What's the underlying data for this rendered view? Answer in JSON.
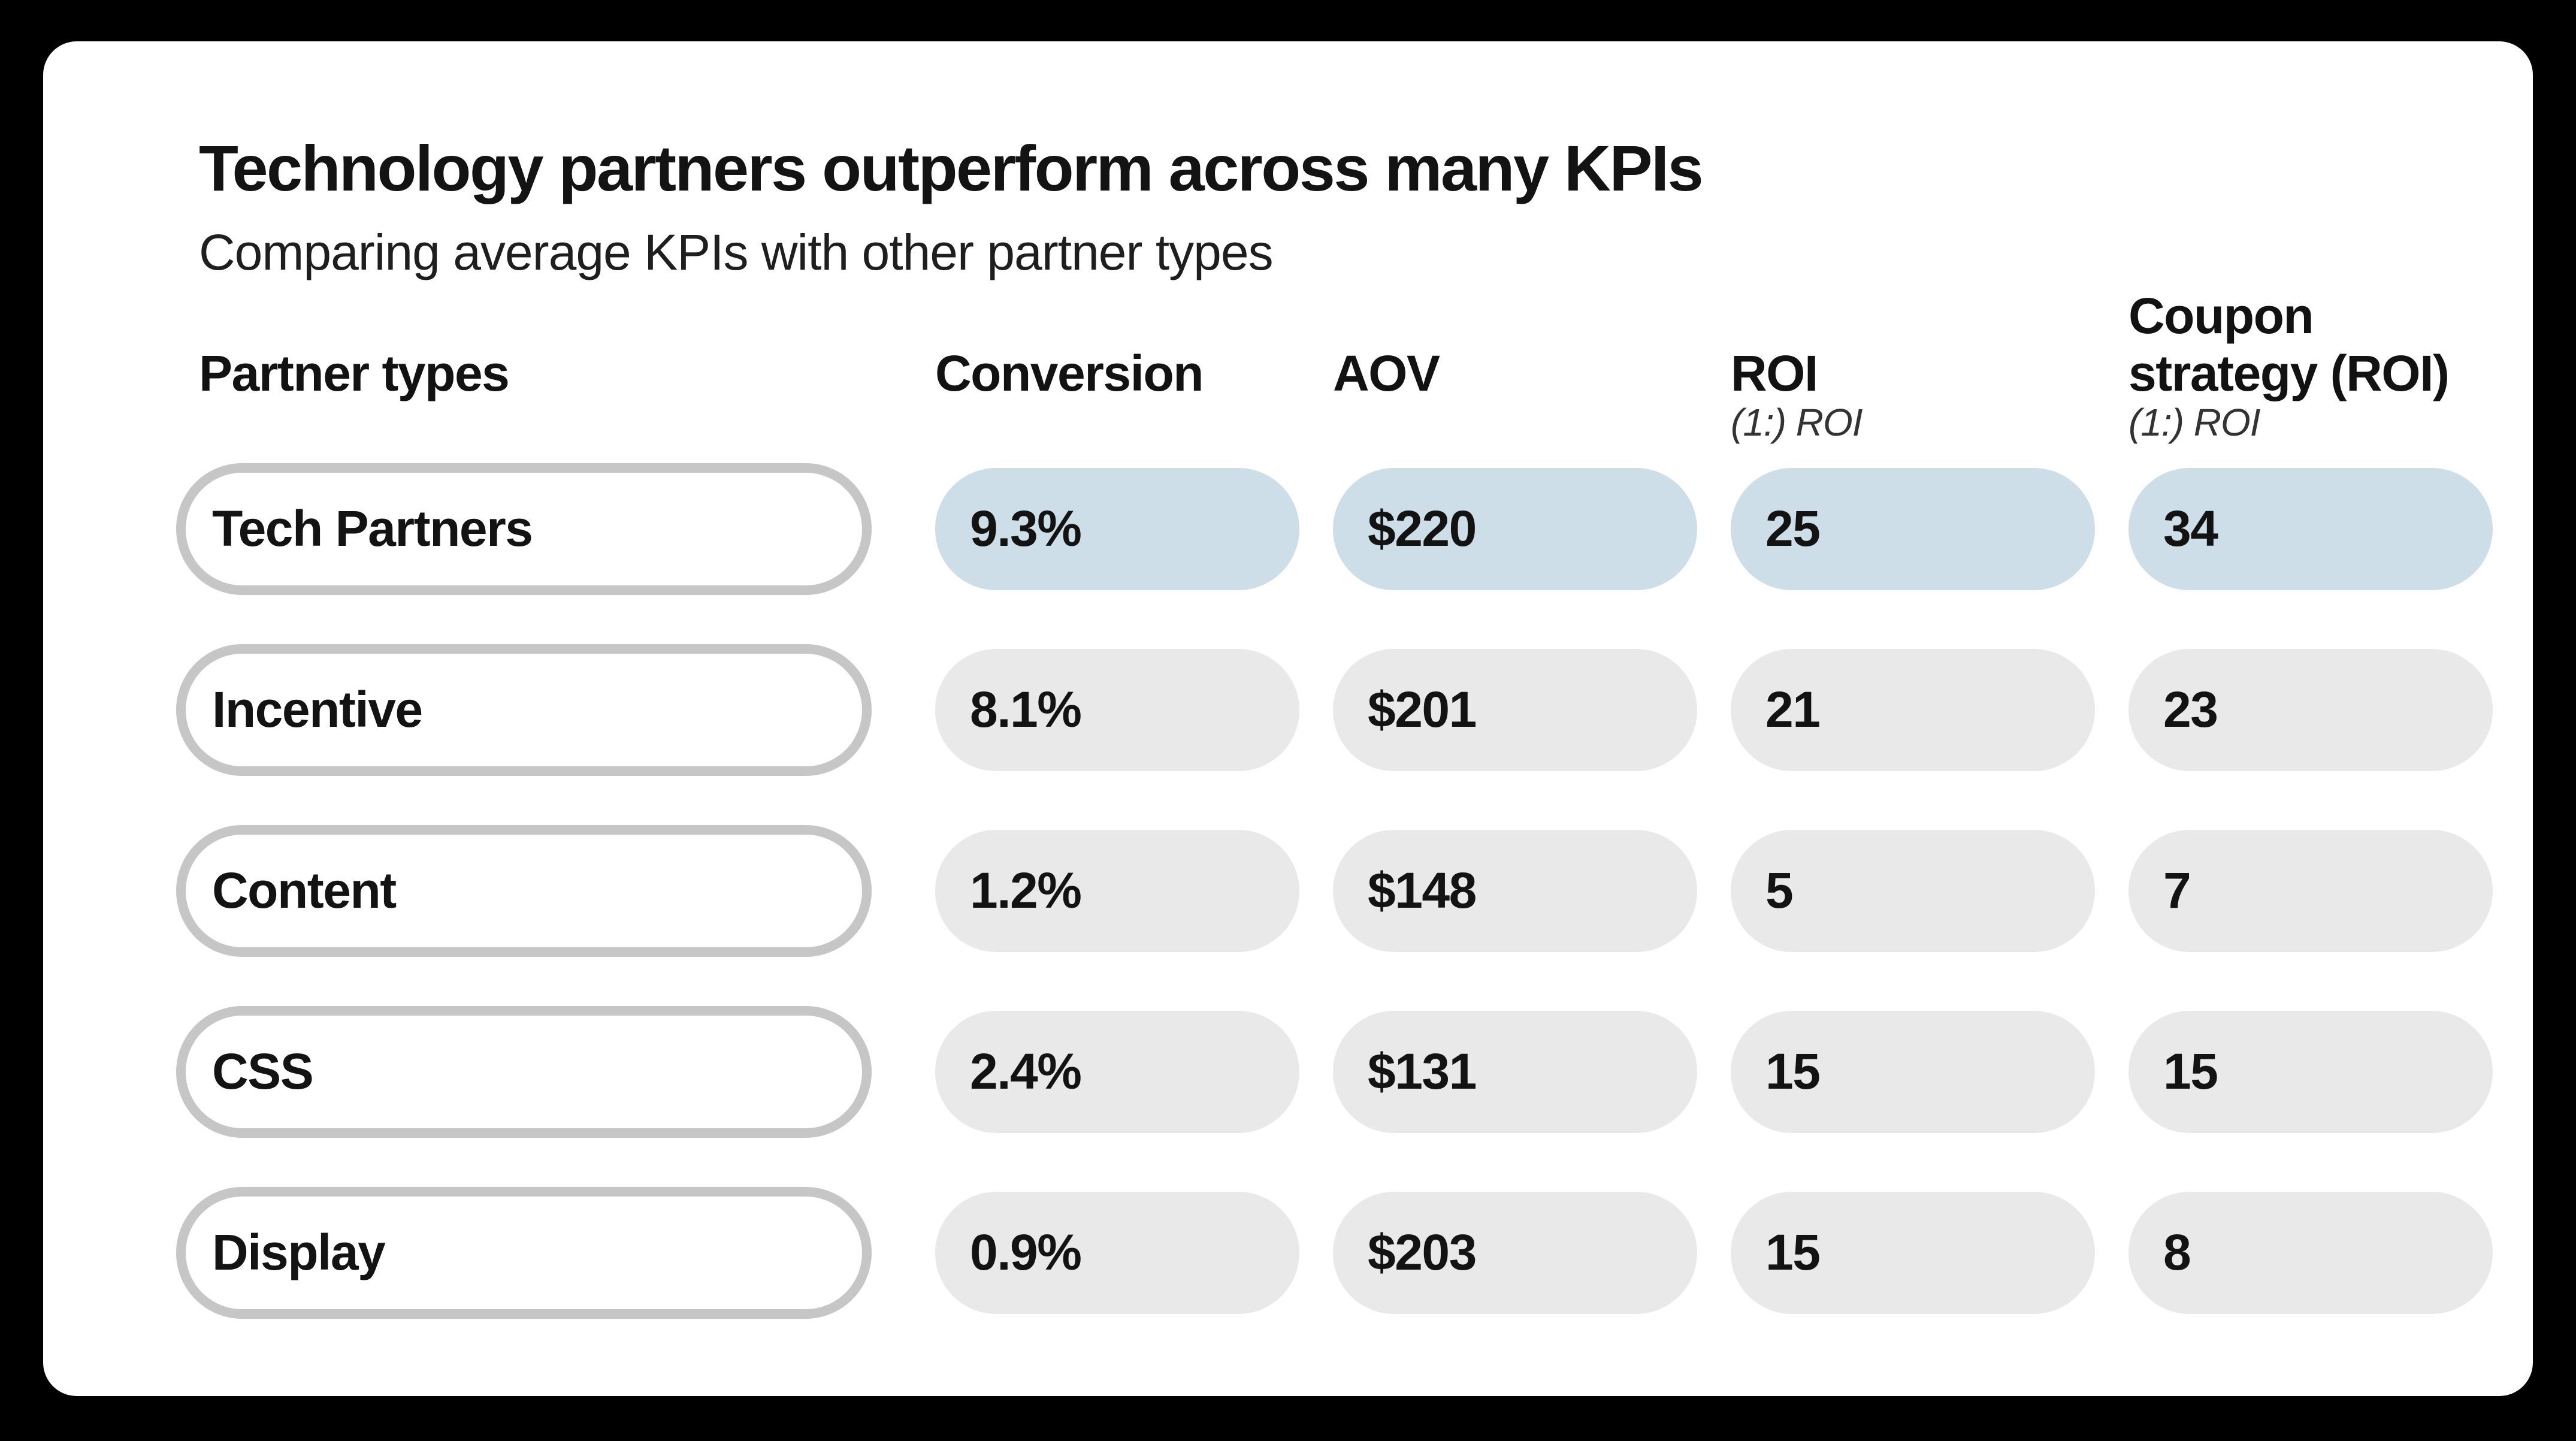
{
  "chart_data": {
    "type": "table",
    "title": "Technology partners outperform across many KPIs",
    "subtitle": "Comparing average KPIs with other partner types",
    "row_header": "Partner types",
    "categories": [
      "Tech Partners",
      "Incentive",
      "Content",
      "CSS",
      "Display"
    ],
    "series": [
      {
        "name": "Conversion",
        "values": [
          "9.3%",
          "8.1%",
          "1.2%",
          "2.4%",
          "0.9%"
        ]
      },
      {
        "name": "AOV",
        "values": [
          "$220",
          "$201",
          "$148",
          "$131",
          "$203"
        ]
      },
      {
        "name": "ROI",
        "values": [
          "25",
          "21",
          "5",
          "15",
          "15"
        ]
      },
      {
        "name": "Coupon strategy (ROI)",
        "values": [
          "34",
          "23",
          "7",
          "15",
          "8"
        ]
      }
    ],
    "highlighted_category": "Tech Partners",
    "legend_position": "none",
    "grid": false
  },
  "headers": {
    "partner": {
      "label": "Partner types",
      "sub": ""
    },
    "cols": [
      {
        "label": "Conversion",
        "sub": ""
      },
      {
        "label": "AOV",
        "sub": ""
      },
      {
        "label": "ROI",
        "sub": "(1:) ROI"
      },
      {
        "label": "Coupon\nstrategy (ROI)",
        "sub": "(1:) ROI"
      }
    ]
  },
  "colors": {
    "background": "#000000",
    "card": "#ffffff",
    "highlight_fill": "#cddee9",
    "neutral_fill": "#e9e9e9",
    "pill_border": "#c6c6c6",
    "text": "#131313",
    "subtext": "#333333"
  }
}
